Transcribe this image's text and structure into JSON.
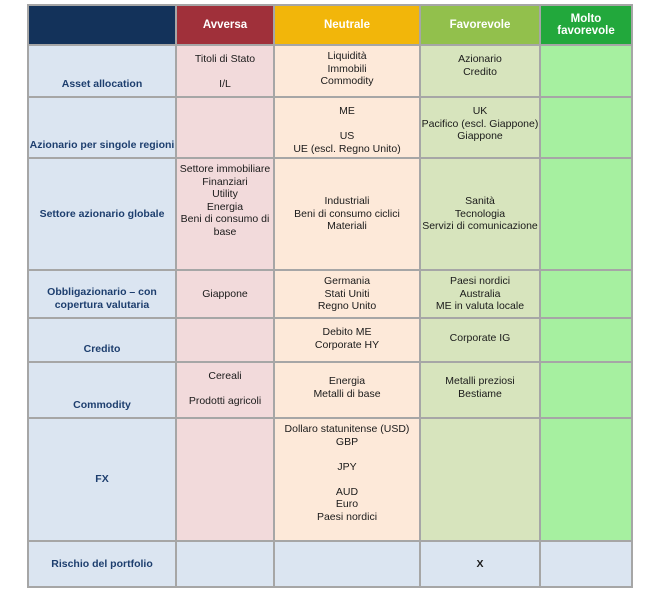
{
  "headers": {
    "corner": "",
    "avversa": "Avversa",
    "neutrale": "Neutrale",
    "favorevole": "Favorevole",
    "molto_favorevole": "Molto favorevole"
  },
  "rows": [
    {
      "label": "Asset allocation",
      "avversa": "Titoli di Stato\n\nI/L",
      "neutrale": "Liquidità\nImmobili\nCommodity",
      "favorevole": "Azionario\nCredito",
      "molto_favorevole": ""
    },
    {
      "label": "Azionario per singole regioni",
      "avversa": "",
      "neutrale": "ME\n\nUS\nUE (escl. Regno Unito)",
      "favorevole": "UK\nPacifico (escl. Giappone)\nGiappone",
      "molto_favorevole": ""
    },
    {
      "label": "Settore azionario globale",
      "avversa": "Settore immobiliare\nFinanziari\nUtility\nEnergia\nBeni di consumo di base",
      "neutrale": "Industriali\nBeni di consumo ciclici\nMateriali",
      "favorevole": "Sanità\nTecnologia\nServizi di comunicazione",
      "molto_favorevole": ""
    },
    {
      "label": "Obbligazionario – con copertura valutaria",
      "avversa": "Giappone",
      "neutrale": "Germania\nStati Uniti\nRegno Unito",
      "favorevole": "Paesi nordici\nAustralia\nME in valuta locale",
      "molto_favorevole": ""
    },
    {
      "label": "Credito",
      "avversa": "",
      "neutrale": "Debito ME\nCorporate HY",
      "favorevole": "Corporate IG",
      "molto_favorevole": ""
    },
    {
      "label": "Commodity",
      "avversa": "Cereali\n\nProdotti agricoli",
      "neutrale": "Energia\nMetalli di base",
      "favorevole": "Metalli preziosi\nBestiame",
      "molto_favorevole": ""
    },
    {
      "label": "FX",
      "avversa": "",
      "neutrale": "Dollaro statunitense (USD)\nGBP\n\nJPY\n\nAUD\nEuro\nPaesi nordici",
      "favorevole": "",
      "molto_favorevole": ""
    },
    {
      "label": "Rischio del portfolio",
      "avversa": "",
      "neutrale": "",
      "favorevole": "X",
      "molto_favorevole": ""
    }
  ]
}
